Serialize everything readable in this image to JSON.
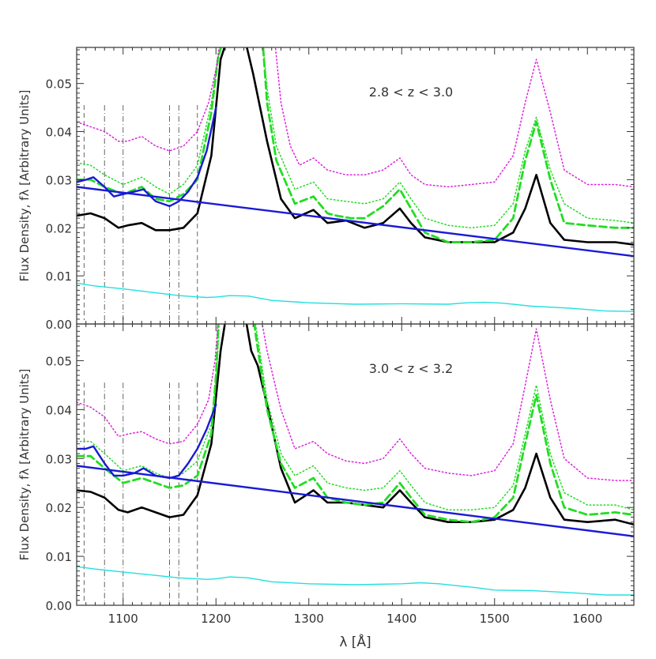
{
  "chart_data": [
    {
      "type": "line",
      "annotation": "2.8 < z < 3.0",
      "xlim": [
        1050,
        1650
      ],
      "ylim": [
        0.0,
        0.0575
      ],
      "ylabel": "Flux Density, fλ [Arbitrary Units]",
      "yticks": [
        0.0,
        0.01,
        0.02,
        0.03,
        0.04,
        0.05
      ],
      "ytick_labels": [
        "0.00",
        "0.01",
        "0.02",
        "0.03",
        "0.04",
        "0.05"
      ],
      "colors": {
        "black": "#000000",
        "green": "#22dd22",
        "magenta": "#dd22dd",
        "blue": "#1a1ad6",
        "cyan": "#22e0e0",
        "gray": "#666666"
      },
      "vertical_lines": [
        {
          "x": 1058,
          "style": "dash"
        },
        {
          "x": 1080,
          "style": "dashdot"
        },
        {
          "x": 1100,
          "style": "dashdot"
        },
        {
          "x": 1150,
          "style": "dashdot"
        },
        {
          "x": 1160,
          "style": "dashdot"
        },
        {
          "x": 1180,
          "style": "dash"
        }
      ],
      "series": [
        {
          "style": "solid-thick",
          "color": "black",
          "x": [
            1050,
            1065,
            1080,
            1095,
            1105,
            1120,
            1135,
            1150,
            1165,
            1180,
            1195,
            1205,
            1210,
            1212,
            1222,
            1232,
            1240,
            1255,
            1270,
            1285,
            1305,
            1320,
            1340,
            1360,
            1380,
            1398,
            1410,
            1425,
            1450,
            1475,
            1500,
            1520,
            1533,
            1545,
            1560,
            1575,
            1600,
            1630,
            1650
          ],
          "y": [
            0.0225,
            0.023,
            0.022,
            0.02,
            0.0205,
            0.021,
            0.0195,
            0.0195,
            0.02,
            0.023,
            0.035,
            0.055,
            0.058,
            0.06,
            0.062,
            0.0585,
            0.052,
            0.038,
            0.026,
            0.022,
            0.0237,
            0.021,
            0.0215,
            0.02,
            0.021,
            0.024,
            0.021,
            0.018,
            0.017,
            0.017,
            0.017,
            0.019,
            0.024,
            0.031,
            0.021,
            0.0175,
            0.017,
            0.017,
            0.0165
          ]
        },
        {
          "style": "dash-thick",
          "color": "green",
          "x": [
            1050,
            1065,
            1080,
            1100,
            1120,
            1135,
            1150,
            1165,
            1180,
            1195,
            1202,
            1208,
            1250,
            1255,
            1265,
            1285,
            1305,
            1320,
            1330,
            1345,
            1360,
            1380,
            1398,
            1410,
            1425,
            1450,
            1475,
            1500,
            1520,
            1533,
            1545,
            1560,
            1575,
            1600,
            1630,
            1650
          ],
          "y": [
            0.03,
            0.03,
            0.0285,
            0.027,
            0.0285,
            0.026,
            0.0255,
            0.027,
            0.03,
            0.044,
            0.055,
            0.0595,
            0.0595,
            0.046,
            0.034,
            0.025,
            0.0265,
            0.023,
            0.0225,
            0.022,
            0.022,
            0.0245,
            0.028,
            0.024,
            0.019,
            0.017,
            0.017,
            0.0175,
            0.022,
            0.034,
            0.042,
            0.03,
            0.021,
            0.0205,
            0.02,
            0.02
          ]
        },
        {
          "style": "dot",
          "color": "green",
          "x": [
            1050,
            1065,
            1080,
            1100,
            1120,
            1135,
            1150,
            1165,
            1180,
            1195,
            1203,
            1208,
            1250,
            1255,
            1265,
            1285,
            1305,
            1320,
            1340,
            1360,
            1380,
            1398,
            1410,
            1425,
            1450,
            1475,
            1500,
            1520,
            1533,
            1545,
            1560,
            1575,
            1600,
            1630,
            1650
          ],
          "y": [
            0.0335,
            0.033,
            0.031,
            0.029,
            0.0305,
            0.0285,
            0.027,
            0.029,
            0.033,
            0.046,
            0.056,
            0.0595,
            0.0595,
            0.049,
            0.037,
            0.028,
            0.0295,
            0.026,
            0.0255,
            0.025,
            0.026,
            0.0295,
            0.026,
            0.022,
            0.0205,
            0.02,
            0.0205,
            0.025,
            0.036,
            0.043,
            0.032,
            0.025,
            0.022,
            0.0215,
            0.021
          ]
        },
        {
          "style": "dot",
          "color": "magenta",
          "x": [
            1050,
            1065,
            1080,
            1095,
            1105,
            1120,
            1135,
            1150,
            1165,
            1180,
            1192,
            1200,
            1205,
            1263,
            1270,
            1280,
            1290,
            1305,
            1320,
            1340,
            1360,
            1380,
            1398,
            1410,
            1425,
            1450,
            1475,
            1500,
            1520,
            1533,
            1545,
            1560,
            1575,
            1600,
            1630,
            1650
          ],
          "y": [
            0.042,
            0.041,
            0.04,
            0.038,
            0.038,
            0.039,
            0.037,
            0.036,
            0.037,
            0.04,
            0.046,
            0.053,
            0.0595,
            0.0595,
            0.046,
            0.037,
            0.033,
            0.0345,
            0.032,
            0.031,
            0.031,
            0.032,
            0.0345,
            0.031,
            0.029,
            0.0285,
            0.029,
            0.0295,
            0.035,
            0.046,
            0.055,
            0.044,
            0.032,
            0.029,
            0.029,
            0.0285
          ]
        },
        {
          "style": "solid",
          "color": "blue",
          "x": [
            1050,
            1060,
            1068,
            1080,
            1090,
            1100,
            1112,
            1122,
            1135,
            1150,
            1160,
            1170,
            1180,
            1190,
            1200
          ],
          "y": [
            0.0295,
            0.03,
            0.0305,
            0.0285,
            0.0265,
            0.027,
            0.0275,
            0.028,
            0.0255,
            0.0245,
            0.0255,
            0.0275,
            0.0305,
            0.036,
            0.045
          ]
        },
        {
          "style": "solid",
          "color": "blue",
          "x": [
            1050,
            1650
          ],
          "y": [
            0.0285,
            0.0141
          ]
        },
        {
          "style": "solid-thin",
          "color": "cyan",
          "x": [
            1050,
            1070,
            1100,
            1130,
            1160,
            1190,
            1200,
            1215,
            1235,
            1260,
            1300,
            1350,
            1400,
            1450,
            1470,
            1490,
            1510,
            1540,
            1580,
            1620,
            1650
          ],
          "y": [
            0.0085,
            0.0079,
            0.0073,
            0.0066,
            0.0059,
            0.0055,
            0.0056,
            0.0059,
            0.0058,
            0.0049,
            0.0044,
            0.0041,
            0.0042,
            0.0041,
            0.0044,
            0.0045,
            0.0043,
            0.0037,
            0.0033,
            0.0027,
            0.0026
          ]
        }
      ]
    },
    {
      "type": "line",
      "annotation": "3.0 < z < 3.2",
      "xlim": [
        1050,
        1650
      ],
      "ylim": [
        0.0,
        0.0575
      ],
      "xlabel": "λ [Å]",
      "ylabel": "Flux Density, fλ [Arbitrary Units]",
      "xticks": [
        1100,
        1200,
        1300,
        1400,
        1500,
        1600
      ],
      "xtick_labels": [
        "1100",
        "1200",
        "1300",
        "1400",
        "1500",
        "1600"
      ],
      "yticks": [
        0.0,
        0.01,
        0.02,
        0.03,
        0.04,
        0.05
      ],
      "ytick_labels": [
        "0.00",
        "0.01",
        "0.02",
        "0.03",
        "0.04",
        "0.05"
      ],
      "colors": {
        "black": "#000000",
        "green": "#22dd22",
        "magenta": "#dd22dd",
        "blue": "#1a1ad6",
        "cyan": "#22e0e0",
        "gray": "#666666"
      },
      "vertical_lines": [
        {
          "x": 1058,
          "style": "dash"
        },
        {
          "x": 1080,
          "style": "dashdot"
        },
        {
          "x": 1100,
          "style": "dashdot"
        },
        {
          "x": 1150,
          "style": "dashdot"
        },
        {
          "x": 1160,
          "style": "dashdot"
        },
        {
          "x": 1180,
          "style": "dash"
        }
      ],
      "series": [
        {
          "style": "solid-thick",
          "color": "black",
          "x": [
            1050,
            1065,
            1080,
            1095,
            1105,
            1120,
            1135,
            1150,
            1165,
            1180,
            1195,
            1205,
            1210,
            1212,
            1222,
            1232,
            1238,
            1245,
            1255,
            1270,
            1285,
            1305,
            1320,
            1340,
            1360,
            1380,
            1398,
            1410,
            1425,
            1450,
            1475,
            1500,
            1520,
            1533,
            1545,
            1560,
            1575,
            1600,
            1630,
            1650
          ],
          "y": [
            0.0235,
            0.0232,
            0.022,
            0.0195,
            0.019,
            0.02,
            0.019,
            0.018,
            0.0185,
            0.0225,
            0.033,
            0.052,
            0.058,
            0.06,
            0.062,
            0.0585,
            0.052,
            0.049,
            0.041,
            0.028,
            0.021,
            0.0235,
            0.021,
            0.021,
            0.0205,
            0.02,
            0.0235,
            0.021,
            0.018,
            0.017,
            0.017,
            0.0175,
            0.0195,
            0.024,
            0.031,
            0.022,
            0.0175,
            0.017,
            0.0175,
            0.0165
          ]
        },
        {
          "style": "dash-thick",
          "color": "green",
          "x": [
            1050,
            1065,
            1080,
            1100,
            1120,
            1135,
            1150,
            1165,
            1180,
            1195,
            1200,
            1203,
            1240,
            1243,
            1255,
            1270,
            1285,
            1305,
            1320,
            1340,
            1360,
            1380,
            1398,
            1410,
            1425,
            1450,
            1475,
            1500,
            1520,
            1533,
            1545,
            1560,
            1575,
            1600,
            1630,
            1650
          ],
          "y": [
            0.0305,
            0.0305,
            0.028,
            0.025,
            0.026,
            0.025,
            0.024,
            0.0245,
            0.0265,
            0.035,
            0.047,
            0.0595,
            0.0595,
            0.055,
            0.04,
            0.029,
            0.024,
            0.026,
            0.022,
            0.021,
            0.0205,
            0.021,
            0.025,
            0.022,
            0.0185,
            0.0175,
            0.017,
            0.018,
            0.022,
            0.033,
            0.043,
            0.029,
            0.02,
            0.0185,
            0.019,
            0.0185
          ]
        },
        {
          "style": "dot",
          "color": "green",
          "x": [
            1050,
            1065,
            1080,
            1100,
            1120,
            1135,
            1150,
            1165,
            1180,
            1195,
            1201,
            1204,
            1240,
            1243,
            1255,
            1270,
            1285,
            1305,
            1320,
            1340,
            1360,
            1380,
            1398,
            1410,
            1425,
            1450,
            1475,
            1500,
            1520,
            1533,
            1545,
            1560,
            1575,
            1600,
            1630,
            1650
          ],
          "y": [
            0.0335,
            0.0335,
            0.031,
            0.0275,
            0.0285,
            0.027,
            0.026,
            0.027,
            0.0295,
            0.037,
            0.048,
            0.0595,
            0.0595,
            0.057,
            0.042,
            0.031,
            0.0265,
            0.0285,
            0.025,
            0.024,
            0.0235,
            0.024,
            0.0275,
            0.0245,
            0.021,
            0.0195,
            0.0195,
            0.02,
            0.0245,
            0.035,
            0.045,
            0.031,
            0.023,
            0.0205,
            0.0205,
            0.0195
          ]
        },
        {
          "style": "dot",
          "color": "magenta",
          "x": [
            1050,
            1065,
            1080,
            1095,
            1105,
            1120,
            1135,
            1150,
            1165,
            1180,
            1192,
            1199,
            1203,
            1248,
            1255,
            1270,
            1285,
            1305,
            1320,
            1340,
            1360,
            1380,
            1398,
            1410,
            1425,
            1450,
            1475,
            1500,
            1520,
            1533,
            1545,
            1560,
            1575,
            1600,
            1630,
            1650
          ],
          "y": [
            0.0415,
            0.0405,
            0.0385,
            0.0345,
            0.035,
            0.0355,
            0.034,
            0.033,
            0.0335,
            0.037,
            0.042,
            0.05,
            0.0595,
            0.0595,
            0.052,
            0.04,
            0.032,
            0.0335,
            0.031,
            0.0295,
            0.029,
            0.03,
            0.034,
            0.031,
            0.028,
            0.027,
            0.0265,
            0.0275,
            0.033,
            0.045,
            0.0565,
            0.042,
            0.03,
            0.026,
            0.0255,
            0.0255
          ]
        },
        {
          "style": "solid",
          "color": "blue",
          "x": [
            1050,
            1060,
            1068,
            1080,
            1090,
            1100,
            1112,
            1122,
            1135,
            1150,
            1160,
            1170,
            1180,
            1190,
            1200
          ],
          "y": [
            0.032,
            0.032,
            0.0325,
            0.029,
            0.0265,
            0.0265,
            0.027,
            0.028,
            0.0265,
            0.026,
            0.0265,
            0.029,
            0.032,
            0.036,
            0.041
          ]
        },
        {
          "style": "solid",
          "color": "blue",
          "x": [
            1050,
            1650
          ],
          "y": [
            0.0285,
            0.0141
          ]
        },
        {
          "style": "solid-thin",
          "color": "cyan",
          "x": [
            1050,
            1070,
            1100,
            1130,
            1160,
            1190,
            1200,
            1215,
            1235,
            1260,
            1300,
            1350,
            1400,
            1420,
            1440,
            1480,
            1500,
            1540,
            1580,
            1620,
            1650
          ],
          "y": [
            0.0079,
            0.0074,
            0.0068,
            0.0062,
            0.0056,
            0.0053,
            0.0054,
            0.0058,
            0.0056,
            0.0048,
            0.0044,
            0.0042,
            0.0044,
            0.0046,
            0.0044,
            0.0036,
            0.0031,
            0.003,
            0.0026,
            0.0021,
            0.0021
          ]
        }
      ]
    }
  ]
}
